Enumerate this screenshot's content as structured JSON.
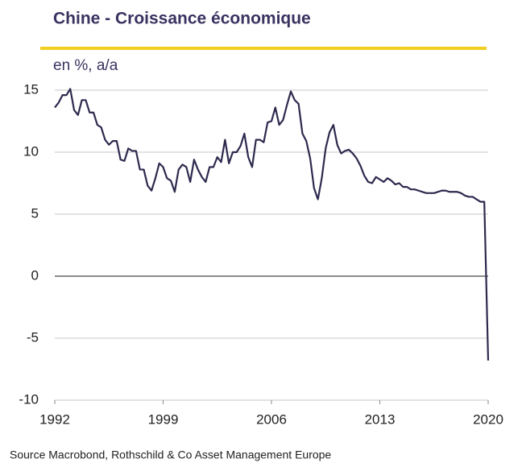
{
  "chart_data": {
    "type": "line",
    "title": "Chine - Croissance économique",
    "subtitle": "en %, a/a",
    "source": "Source Macrobond, Rothschild & Co Asset Management Europe",
    "color": "#2d2a4e",
    "x": [
      1992,
      1992.25,
      1992.5,
      1992.75,
      1993,
      1993.25,
      1993.5,
      1993.75,
      1994,
      1994.25,
      1994.5,
      1994.75,
      1995,
      1995.25,
      1995.5,
      1995.75,
      1996,
      1996.25,
      1996.5,
      1996.75,
      1997,
      1997.25,
      1997.5,
      1997.75,
      1998,
      1998.25,
      1998.5,
      1998.75,
      1999,
      1999.25,
      1999.5,
      1999.75,
      2000,
      2000.25,
      2000.5,
      2000.75,
      2001,
      2001.25,
      2001.5,
      2001.75,
      2002,
      2002.25,
      2002.5,
      2002.75,
      2003,
      2003.25,
      2003.5,
      2003.75,
      2004,
      2004.25,
      2004.5,
      2004.75,
      2005,
      2005.25,
      2005.5,
      2005.75,
      2006,
      2006.25,
      2006.5,
      2006.75,
      2007,
      2007.25,
      2007.5,
      2007.75,
      2008,
      2008.25,
      2008.5,
      2008.75,
      2009,
      2009.25,
      2009.5,
      2009.75,
      2010,
      2010.25,
      2010.5,
      2010.75,
      2011,
      2011.25,
      2011.5,
      2011.75,
      2012,
      2012.25,
      2012.5,
      2012.75,
      2013,
      2013.25,
      2013.5,
      2013.75,
      2014,
      2014.25,
      2014.5,
      2014.75,
      2015,
      2015.25,
      2015.5,
      2015.75,
      2016,
      2016.25,
      2016.5,
      2016.75,
      2017,
      2017.25,
      2017.5,
      2017.75,
      2018,
      2018.25,
      2018.5,
      2018.75,
      2019,
      2019.25,
      2019.5,
      2019.75,
      2020
    ],
    "values": [
      13.6,
      14.0,
      14.6,
      14.6,
      15.1,
      13.4,
      13.0,
      14.2,
      14.2,
      13.2,
      13.2,
      12.2,
      12.0,
      11.0,
      10.6,
      10.9,
      10.9,
      9.4,
      9.3,
      10.3,
      10.1,
      10.1,
      8.6,
      8.6,
      7.3,
      6.9,
      7.9,
      9.1,
      8.8,
      7.9,
      7.7,
      6.8,
      8.6,
      9.0,
      8.8,
      7.6,
      9.4,
      8.6,
      8.0,
      7.6,
      8.8,
      8.8,
      9.6,
      9.2,
      11.0,
      9.1,
      10.0,
      10.0,
      10.5,
      11.5,
      9.6,
      8.8,
      11.0,
      11.0,
      10.8,
      12.4,
      12.5,
      13.6,
      12.2,
      12.6,
      13.8,
      14.9,
      14.2,
      13.9,
      11.5,
      10.9,
      9.5,
      7.1,
      6.2,
      7.9,
      10.3,
      11.6,
      12.2,
      10.6,
      9.9,
      10.1,
      10.2,
      9.9,
      9.5,
      8.9,
      8.1,
      7.6,
      7.5,
      8.0,
      7.8,
      7.6,
      7.9,
      7.7,
      7.4,
      7.5,
      7.2,
      7.2,
      7.0,
      7.0,
      6.9,
      6.8,
      6.7,
      6.7,
      6.7,
      6.8,
      6.9,
      6.9,
      6.8,
      6.8,
      6.8,
      6.7,
      6.5,
      6.4,
      6.4,
      6.2,
      6.0,
      6.0,
      -6.8
    ],
    "xlim": [
      1992,
      2020
    ],
    "xticks": [
      1992,
      1999,
      2006,
      2013,
      2020
    ],
    "ylim": [
      -10,
      15
    ],
    "yticks": [
      -10,
      -5,
      0,
      5,
      10,
      15
    ],
    "grid": true
  }
}
